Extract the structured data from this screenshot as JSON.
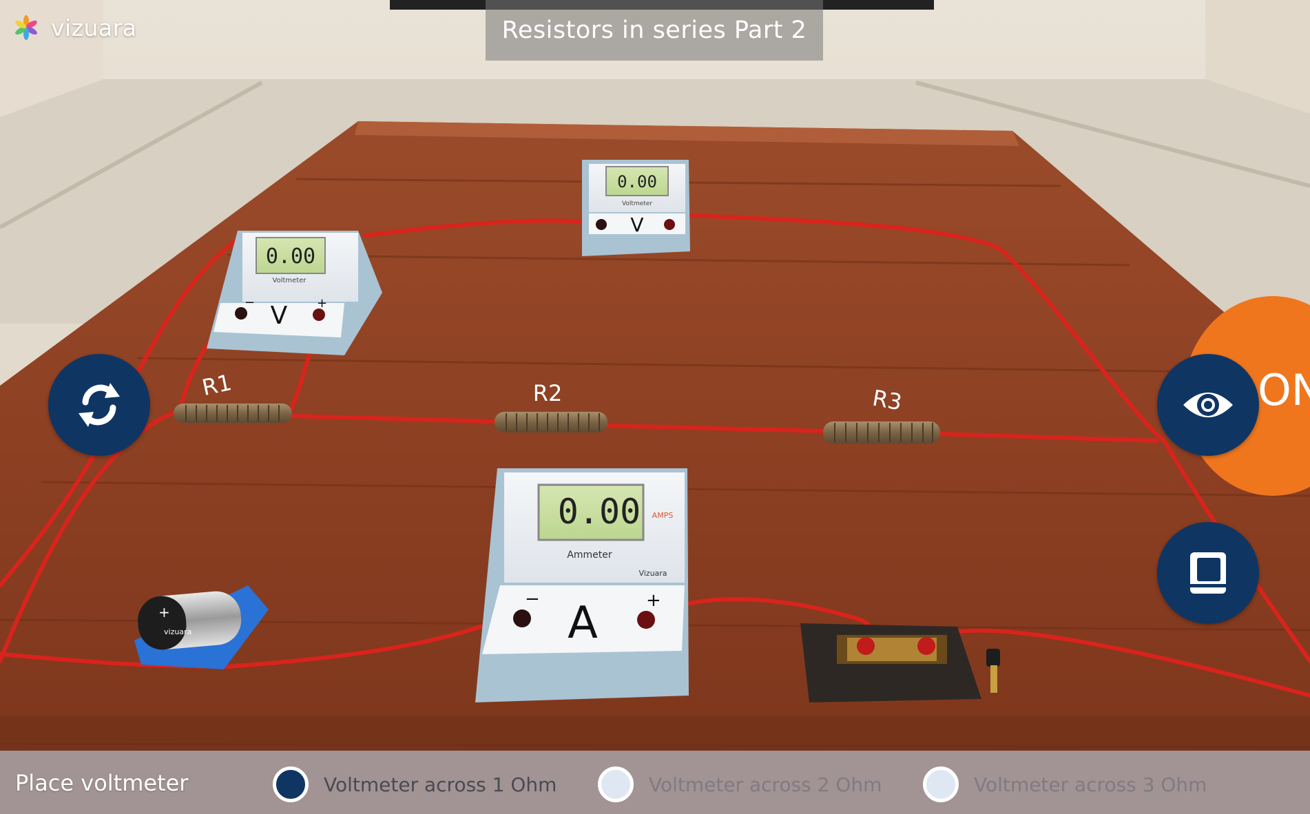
{
  "app": {
    "brand": "vizuara"
  },
  "header": {
    "title": "Resistors in series Part 2"
  },
  "colors": {
    "accent_navy": "#0f3563",
    "accent_orange": "#f0761e",
    "wire_red": "#d9231c"
  },
  "icons": {
    "reset": "refresh-arrows-icon",
    "view": "eye-icon",
    "book": "book-icon"
  },
  "scene": {
    "voltmeter_left": {
      "reading": "0.00",
      "symbol": "V",
      "name": "Voltmeter",
      "minus": "−",
      "plus": "+"
    },
    "voltmeter_top": {
      "reading": "0.00",
      "symbol": "V",
      "name": "Voltmeter"
    },
    "ammeter": {
      "reading": "0.00",
      "symbol": "A",
      "name": "Ammeter",
      "unit": "AMPS",
      "brand": "Vizuara",
      "minus": "−",
      "plus": "+"
    },
    "resistors": [
      "R1",
      "R2",
      "R3"
    ],
    "battery": {
      "label": "vizuara",
      "plus": "+"
    },
    "orange_button": {
      "label": "ON"
    }
  },
  "bottom": {
    "label": "Place voltmeter",
    "options": [
      {
        "label": "Voltmeter across 1 Ohm",
        "selected": true
      },
      {
        "label": "Voltmeter across 2 Ohm",
        "selected": false
      },
      {
        "label": "Voltmeter across 3 Ohm",
        "selected": false
      }
    ]
  }
}
